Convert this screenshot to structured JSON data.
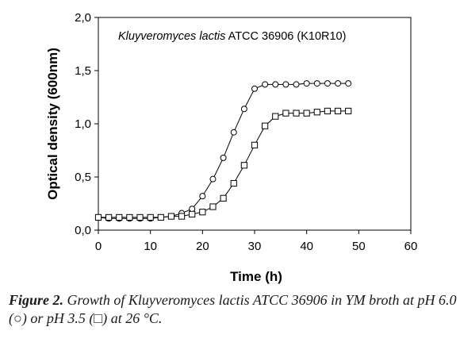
{
  "chart_data": {
    "type": "line",
    "title": "",
    "annotation_italic": "Kluyveromyces lactis",
    "annotation_rest": " ATCC 36906 (K10R10)",
    "xlabel": "Time (h)",
    "ylabel": "Optical density (600nm)",
    "xlim": [
      0,
      60
    ],
    "ylim": [
      0,
      2
    ],
    "xticks": [
      "0",
      "10",
      "20",
      "30",
      "40",
      "50",
      "60"
    ],
    "yticks": [
      "0,0",
      "0,5",
      "1,0",
      "1,5",
      "2,0"
    ],
    "grid": false,
    "series": [
      {
        "marker": "circle",
        "x": [
          0,
          2,
          4,
          6,
          8,
          10,
          12,
          14,
          16,
          18,
          20,
          22,
          24,
          26,
          28,
          30,
          32,
          34,
          36,
          38,
          40,
          42,
          44,
          46,
          48
        ],
        "y": [
          0.12,
          0.11,
          0.11,
          0.11,
          0.11,
          0.11,
          0.12,
          0.13,
          0.16,
          0.2,
          0.32,
          0.48,
          0.68,
          0.92,
          1.14,
          1.33,
          1.37,
          1.37,
          1.37,
          1.37,
          1.38,
          1.38,
          1.38,
          1.38,
          1.38
        ]
      },
      {
        "marker": "square",
        "x": [
          0,
          2,
          4,
          6,
          8,
          10,
          12,
          14,
          16,
          18,
          20,
          22,
          24,
          26,
          28,
          30,
          32,
          34,
          36,
          38,
          40,
          42,
          44,
          46,
          48
        ],
        "y": [
          0.12,
          0.12,
          0.12,
          0.12,
          0.12,
          0.12,
          0.12,
          0.13,
          0.13,
          0.15,
          0.17,
          0.22,
          0.3,
          0.44,
          0.61,
          0.8,
          0.98,
          1.07,
          1.1,
          1.1,
          1.1,
          1.11,
          1.12,
          1.12,
          1.12
        ]
      }
    ]
  },
  "caption": {
    "label": "Figure 2.",
    "text": " Growth of Kluyveromyces lactis ATCC 36906 in YM broth at pH 6.0 (○) or pH 3.5 (□) at 26 °C."
  }
}
